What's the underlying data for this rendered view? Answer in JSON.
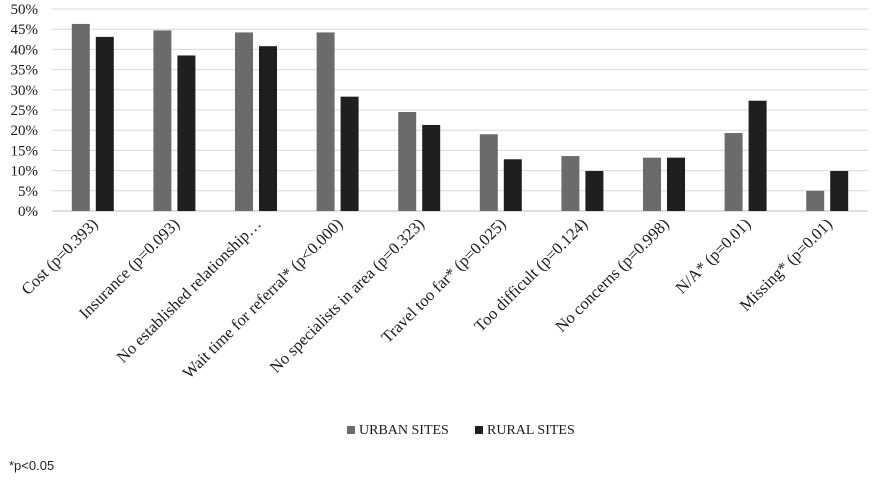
{
  "chart_data": {
    "type": "bar",
    "categories": [
      "Cost (p=0.393)",
      "Insurance (p=0.093)",
      "No established relationship…",
      "Wait time for referral* (p<0.000)",
      "No specialists in area (p=0.323)",
      "Travel too far* (p=0.025)",
      "Too difficult (p=0.124)",
      "No concerns (p=0.998)",
      "N/A* (p=0.01)",
      "Missing* (p=0.01)"
    ],
    "series": [
      {
        "name": "URBAN SITES",
        "color": "#6b6b6b",
        "values": [
          46.3,
          44.7,
          44.2,
          44.2,
          24.5,
          19.0,
          13.6,
          13.2,
          19.3,
          5.0
        ]
      },
      {
        "name": "RURAL SITES",
        "color": "#1f1f1f",
        "values": [
          43.1,
          38.5,
          40.8,
          28.3,
          21.3,
          12.8,
          9.9,
          13.2,
          27.3,
          9.9
        ]
      }
    ],
    "y_ticks": [
      "0%",
      "5%",
      "10%",
      "15%",
      "20%",
      "25%",
      "30%",
      "35%",
      "40%",
      "45%",
      "50%"
    ],
    "ylim": [
      0,
      50
    ],
    "grid": true,
    "legend_position": "bottom",
    "title": "",
    "xlabel": "",
    "ylabel": ""
  },
  "footnote": "*p<0.05"
}
